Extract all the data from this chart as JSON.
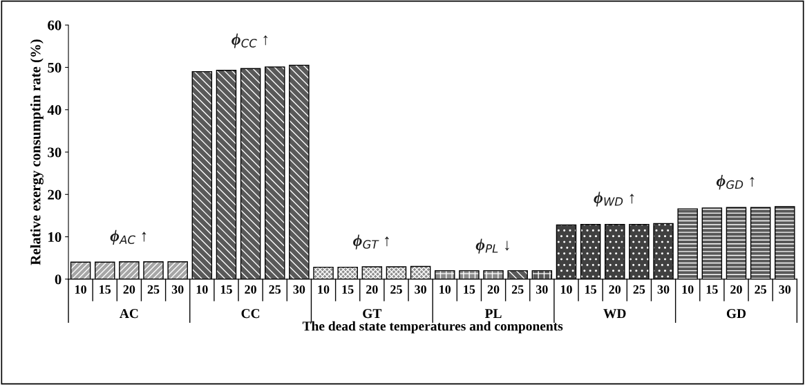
{
  "chart_data": {
    "type": "bar",
    "xlabel": "The dead state temperatures and components",
    "ylabel": "Relative exergy consumptin rate (%)",
    "categories": [
      "10",
      "15",
      "20",
      "25",
      "30",
      "10",
      "15",
      "20",
      "25",
      "30",
      "10",
      "15",
      "20",
      "25",
      "30",
      "10",
      "15",
      "20",
      "25",
      "30",
      "10",
      "15",
      "20",
      "25",
      "30",
      "10",
      "15",
      "20",
      "25",
      "30"
    ],
    "values": [
      4.0,
      4.0,
      4.1,
      4.1,
      4.1,
      49.0,
      49.3,
      49.7,
      50.1,
      50.5,
      2.8,
      2.8,
      2.9,
      2.9,
      3.0,
      2.0,
      2.0,
      2.0,
      2.0,
      2.0,
      12.8,
      12.9,
      12.9,
      12.9,
      13.1,
      16.6,
      16.8,
      16.9,
      16.9,
      17.1
    ],
    "colors": [
      "#a6a6a6",
      "#a6a6a6",
      "#a6a6a6",
      "#a6a6a6",
      "#a6a6a6",
      "#595959",
      "#595959",
      "#595959",
      "#595959",
      "#595959",
      "#8c8c8c",
      "#8c8c8c",
      "#8c8c8c",
      "#8c8c8c",
      "#8c8c8c",
      "#8c8c8c",
      "#8c8c8c",
      "#8c8c8c",
      "#595959",
      "#595959",
      "#404040",
      "#404040",
      "#404040",
      "#404040",
      "#404040",
      "#595959",
      "#595959",
      "#595959",
      "#595959",
      "#595959"
    ],
    "annotations": [
      "AC",
      "CC",
      "GT",
      "PL",
      "WD",
      "GD",
      "ϕ$_{AC}$ ↑",
      "ϕ$_{CC}$ ↑",
      "ϕ$_{GT}$ ↑",
      "ϕ$_{PL}$ ↓",
      "ϕ$_{WD}$ ↑",
      "ϕ$_{GD}$ ↑"
    ],
    "ylim": [
      0,
      60
    ],
    "yticks": [
      0,
      10,
      20,
      30,
      40,
      50,
      60
    ],
    "grid": false,
    "legend": false
  }
}
